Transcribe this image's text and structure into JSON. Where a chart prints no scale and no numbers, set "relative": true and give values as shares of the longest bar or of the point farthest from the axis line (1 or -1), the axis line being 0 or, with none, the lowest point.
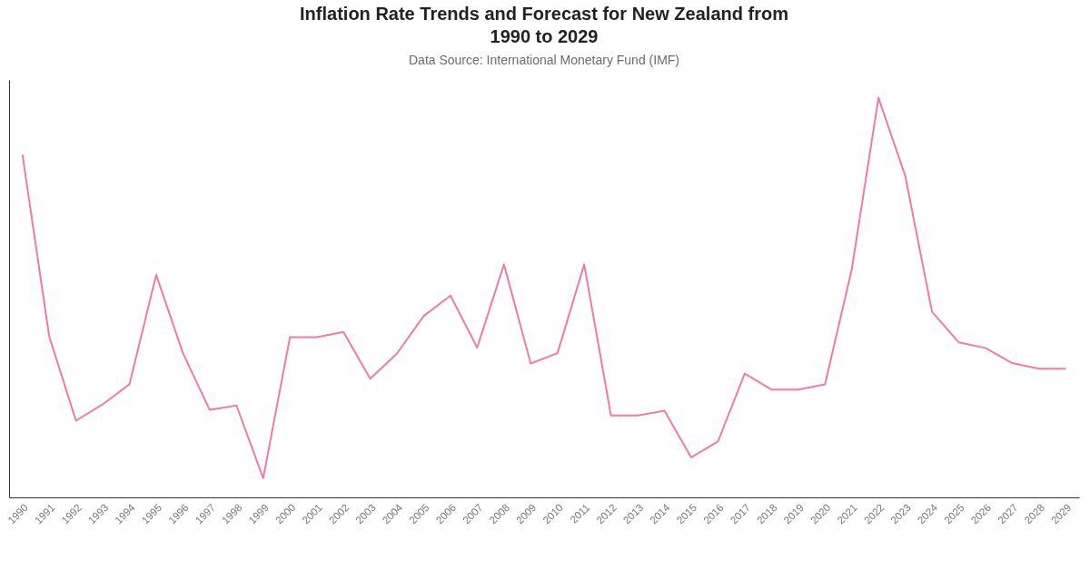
{
  "chart_data": {
    "type": "line",
    "title": "Inflation Rate Trends and Forecast for New Zealand from 1990 to 2029",
    "subtitle": "Data Source: International Monetary Fund (IMF)",
    "relative": true,
    "categories": [
      "1990",
      "1991",
      "1992",
      "1993",
      "1994",
      "1995",
      "1996",
      "1997",
      "1998",
      "1999",
      "2000",
      "2001",
      "2002",
      "2003",
      "2004",
      "2005",
      "2006",
      "2007",
      "2008",
      "2009",
      "2010",
      "2011",
      "2012",
      "2013",
      "2014",
      "2015",
      "2016",
      "2017",
      "2018",
      "2019",
      "2020",
      "2021",
      "2022",
      "2023",
      "2024",
      "2025",
      "2026",
      "2027",
      "2028",
      "2029"
    ],
    "series": [
      {
        "color": "#f07aa9",
        "values": [
          0.858,
          0.403,
          0.192,
          0.233,
          0.283,
          0.557,
          0.361,
          0.219,
          0.23,
          0.048,
          0.401,
          0.401,
          0.414,
          0.297,
          0.36,
          0.454,
          0.505,
          0.375,
          0.583,
          0.335,
          0.361,
          0.583,
          0.205,
          0.205,
          0.217,
          0.1,
          0.14,
          0.31,
          0.27,
          0.27,
          0.283,
          0.57,
          1,
          0.805,
          0.465,
          0.388,
          0.374,
          0.336,
          0.322,
          0.322
        ]
      }
    ]
  }
}
